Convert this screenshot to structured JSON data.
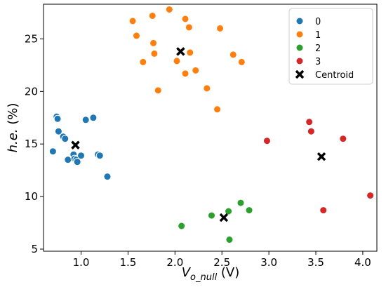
{
  "chart_data": {
    "type": "scatter",
    "xlabel": "V_o_null (V)",
    "ylabel": "h.e. (%)",
    "xlim": [
      0.6,
      4.15
    ],
    "ylim": [
      4.8,
      28.3
    ],
    "xticks": [
      "1.0",
      "1.5",
      "2.0",
      "2.5",
      "3.0",
      "3.5",
      "4.0"
    ],
    "xtick_values": [
      1.0,
      1.5,
      2.0,
      2.5,
      3.0,
      3.5,
      4.0
    ],
    "yticks": [
      "5",
      "10",
      "15",
      "20",
      "25"
    ],
    "ytick_values": [
      5,
      10,
      15,
      20,
      25
    ],
    "grid": false,
    "legend_position": "top-right",
    "series": [
      {
        "name": "0",
        "color": "#1f77b4",
        "x": [
          0.7,
          0.74,
          0.75,
          0.76,
          0.81,
          0.83,
          0.86,
          0.92,
          0.93,
          0.95,
          0.96,
          1.0,
          1.05,
          1.13,
          1.18,
          1.2,
          1.28
        ],
        "y": [
          14.3,
          17.6,
          17.4,
          16.2,
          15.7,
          15.5,
          13.5,
          14.0,
          13.6,
          13.5,
          13.3,
          13.9,
          17.3,
          17.5,
          14.0,
          13.9,
          11.9
        ]
      },
      {
        "name": "1",
        "color": "#ff7f0e",
        "x": [
          1.55,
          1.59,
          1.66,
          1.76,
          1.77,
          1.78,
          1.82,
          1.94,
          2.02,
          2.11,
          2.11,
          2.15,
          2.16,
          2.22,
          2.34,
          2.45,
          2.48,
          2.62,
          2.71
        ],
        "y": [
          26.7,
          25.3,
          22.8,
          27.2,
          24.6,
          23.6,
          20.1,
          27.8,
          22.9,
          26.9,
          21.7,
          26.1,
          23.7,
          22.0,
          20.3,
          18.3,
          26.0,
          23.5,
          22.8
        ]
      },
      {
        "name": "2",
        "color": "#2ca02c",
        "x": [
          2.07,
          2.39,
          2.57,
          2.58,
          2.7,
          2.79
        ],
        "y": [
          7.2,
          8.2,
          8.6,
          5.9,
          9.4,
          8.7
        ]
      },
      {
        "name": "3",
        "color": "#d62728",
        "x": [
          2.98,
          3.43,
          3.45,
          3.58,
          3.79,
          4.08
        ],
        "y": [
          15.3,
          17.1,
          16.2,
          8.7,
          15.5,
          10.1
        ]
      }
    ],
    "centroids": {
      "name": "Centroid",
      "color": "#000000",
      "x": [
        0.94,
        2.06,
        2.52,
        3.56
      ],
      "y": [
        14.9,
        23.8,
        8.0,
        13.8
      ]
    }
  }
}
